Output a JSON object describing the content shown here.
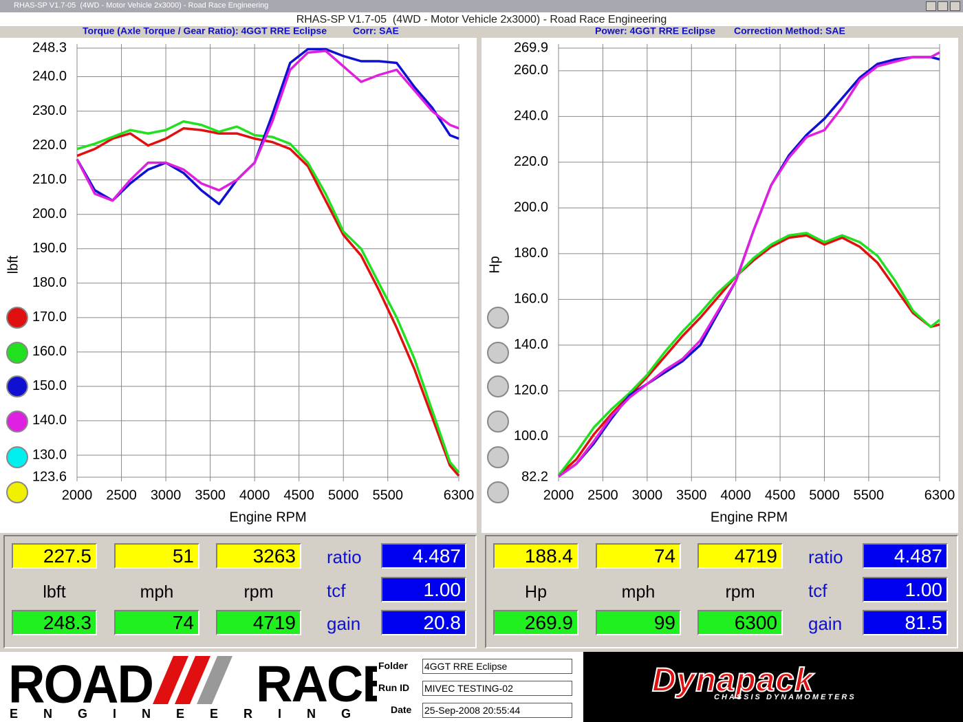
{
  "window": {
    "title": "RHAS-SP V1.7-05  (4WD - Motor Vehicle 2x3000) - Road Race Engineering"
  },
  "chart_data": [
    {
      "type": "line",
      "title": "Torque (Axle Torque / Gear Ratio): 4GGT RRE Eclipse",
      "subtitle": "Corr: SAE",
      "xlabel": "Engine RPM",
      "ylabel": "lbft",
      "x": [
        2000,
        2200,
        2400,
        2600,
        2800,
        3000,
        3200,
        3400,
        3600,
        3800,
        4000,
        4200,
        4400,
        4600,
        4800,
        5000,
        5200,
        5400,
        5600,
        5800,
        6000,
        6200,
        6300
      ],
      "xlim": [
        2000,
        6300
      ],
      "xticks": [
        2000,
        2500,
        3000,
        3500,
        4000,
        4500,
        5000,
        5500,
        6300
      ],
      "ylim": [
        123.6,
        248.3
      ],
      "yticks": [
        248.3,
        {
          "value": 240,
          "label": "240.0"
        },
        {
          "value": 230,
          "label": "230.0"
        },
        {
          "value": 220,
          "label": "220.0"
        },
        {
          "value": 210,
          "label": "210.0"
        },
        {
          "value": 200,
          "label": "200.0"
        },
        {
          "value": 190,
          "label": "190.0"
        },
        {
          "value": 180,
          "label": "180.0"
        },
        {
          "value": 170,
          "label": "170.0"
        },
        {
          "value": 160,
          "label": "160.0"
        },
        {
          "value": 150,
          "label": "150.0"
        },
        {
          "value": 140,
          "label": "140.0"
        },
        {
          "value": 130,
          "label": "130.0"
        },
        123.6
      ],
      "grid": true,
      "series": [
        {
          "color": "#e01010",
          "values": [
            217,
            219,
            222,
            223.5,
            220,
            222,
            225,
            224.5,
            223.5,
            223.5,
            222,
            221,
            219,
            214,
            204,
            194,
            188,
            178,
            167,
            155,
            141,
            127,
            124
          ]
        },
        {
          "color": "#20e020",
          "values": [
            219,
            220.5,
            222.5,
            224.5,
            223.5,
            224.5,
            227,
            226,
            224,
            225.5,
            223,
            222.5,
            220.5,
            215,
            206,
            195,
            190,
            180,
            170,
            158,
            143,
            128,
            125
          ]
        },
        {
          "color": "#1010d0",
          "values": [
            216,
            207,
            204,
            209,
            213,
            215,
            212,
            207,
            203,
            210,
            215,
            229,
            244,
            248,
            248,
            246,
            244.5,
            244.5,
            244,
            237,
            231,
            223,
            222
          ]
        },
        {
          "color": "#e020e0",
          "values": [
            216,
            206,
            204,
            210,
            215,
            215,
            213,
            209,
            207,
            210,
            215,
            227,
            242,
            247,
            247.5,
            243,
            238.5,
            240.5,
            242,
            236,
            230,
            226,
            225
          ]
        }
      ]
    },
    {
      "type": "line",
      "title": "Power: 4GGT RRE Eclipse",
      "subtitle": "Correction Method: SAE",
      "xlabel": "Engine RPM",
      "ylabel": "Hp",
      "x": [
        2000,
        2200,
        2400,
        2600,
        2800,
        3000,
        3200,
        3400,
        3600,
        3800,
        4000,
        4200,
        4400,
        4600,
        4800,
        5000,
        5200,
        5400,
        5600,
        5800,
        6000,
        6200,
        6300
      ],
      "xlim": [
        2000,
        6300
      ],
      "xticks": [
        2000,
        2500,
        3000,
        3500,
        4000,
        4500,
        5000,
        5500,
        6300
      ],
      "ylim": [
        82.2,
        269.9
      ],
      "yticks": [
        269.9,
        {
          "value": 260,
          "label": "260.0"
        },
        {
          "value": 240,
          "label": "240.0"
        },
        {
          "value": 220,
          "label": "220.0"
        },
        {
          "value": 200,
          "label": "200.0"
        },
        {
          "value": 180,
          "label": "180.0"
        },
        {
          "value": 160,
          "label": "160.0"
        },
        {
          "value": 140,
          "label": "140.0"
        },
        {
          "value": 120,
          "label": "120.0"
        },
        {
          "value": 100,
          "label": "100.0"
        },
        82.2
      ],
      "grid": true,
      "series": [
        {
          "color": "#e01010",
          "values": [
            83,
            90,
            101,
            110,
            118,
            126,
            135,
            144,
            152,
            161,
            170,
            177,
            183,
            187,
            188,
            184,
            187,
            183,
            176,
            165,
            154,
            148,
            149
          ]
        },
        {
          "color": "#20e020",
          "values": [
            83,
            93,
            104,
            112,
            119,
            127,
            137,
            146,
            154,
            163,
            170,
            178,
            184,
            188,
            189,
            185,
            188,
            185,
            179,
            168,
            155,
            148,
            151
          ]
        },
        {
          "color": "#1010d0",
          "values": [
            82.5,
            88,
            97,
            108,
            118,
            123,
            128,
            133,
            140,
            154,
            168,
            190,
            210,
            223,
            232,
            239,
            248,
            257,
            263,
            265,
            266,
            266,
            265
          ]
        },
        {
          "color": "#e020e0",
          "values": [
            82.5,
            88,
            98,
            109,
            117,
            123,
            129,
            134,
            142,
            155,
            168,
            190,
            210,
            222,
            231,
            234,
            244,
            256,
            262,
            264,
            266,
            266,
            268
          ]
        }
      ]
    }
  ],
  "readouts": [
    {
      "top": [
        "227.5",
        "51",
        "3263"
      ],
      "units": [
        "lbft",
        "mph",
        "rpm"
      ],
      "bottom": [
        "248.3",
        "74",
        "4719"
      ],
      "factor_labels": [
        "ratio",
        "tcf",
        "gain"
      ],
      "factors": [
        "4.487",
        "1.00",
        "20.8"
      ]
    },
    {
      "top": [
        "188.4",
        "74",
        "4719"
      ],
      "units": [
        "Hp",
        "mph",
        "rpm"
      ],
      "bottom": [
        "269.9",
        "99",
        "6300"
      ],
      "factor_labels": [
        "ratio",
        "tcf",
        "gain"
      ],
      "factors": [
        "4.487",
        "1.00",
        "81.5"
      ]
    }
  ],
  "footer": {
    "logo": {
      "word1": "ROAD",
      "word2": "RACE",
      "tagline": "ENGINEERING"
    },
    "fields": [
      {
        "label": "Folder",
        "value": "4GGT RRE Eclipse"
      },
      {
        "label": "Run ID",
        "value": "MIVEC TESTING-02"
      },
      {
        "label": "Date",
        "value": "25-Sep-2008  20:55:44"
      }
    ],
    "brand": {
      "name": "Dynapack",
      "tagline": "CHASSIS DYNAMOMETERS"
    }
  }
}
